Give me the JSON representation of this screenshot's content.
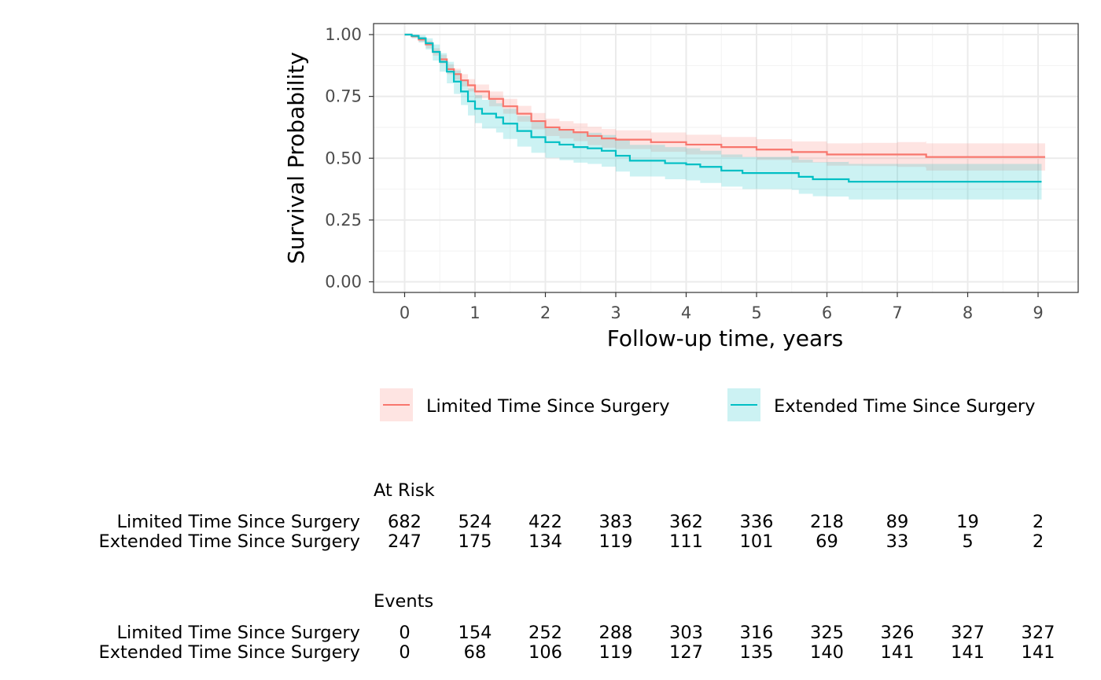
{
  "chart_data": {
    "type": "line",
    "subtype": "kaplan-meier",
    "xlabel": "Follow-up time, years",
    "ylabel": "Survival Probability",
    "xlim": [
      -0.45,
      9.6
    ],
    "ylim": [
      -0.045,
      1.045
    ],
    "x_ticks": [
      0,
      1,
      2,
      3,
      4,
      5,
      6,
      7,
      8,
      9
    ],
    "y_ticks": [
      0,
      0.25,
      0.5,
      0.75,
      1
    ],
    "y_tick_labels": [
      "0.00",
      "0.25",
      "0.50",
      "0.75",
      "1.00"
    ],
    "grid": true,
    "confidence_band": true,
    "legend_position": "bottom",
    "series": [
      {
        "name": "Limited Time Since Surgery",
        "color": "#F8766D",
        "band_color": "#F8766D",
        "points": [
          [
            0,
            1
          ],
          [
            0.1,
            0.993
          ],
          [
            0.2,
            0.98
          ],
          [
            0.3,
            0.96
          ],
          [
            0.4,
            0.93
          ],
          [
            0.5,
            0.9
          ],
          [
            0.6,
            0.86
          ],
          [
            0.7,
            0.84
          ],
          [
            0.8,
            0.815
          ],
          [
            0.9,
            0.795
          ],
          [
            1,
            0.77
          ],
          [
            1.2,
            0.74
          ],
          [
            1.4,
            0.71
          ],
          [
            1.6,
            0.68
          ],
          [
            1.8,
            0.65
          ],
          [
            2,
            0.625
          ],
          [
            2.2,
            0.615
          ],
          [
            2.4,
            0.605
          ],
          [
            2.6,
            0.59
          ],
          [
            2.8,
            0.58
          ],
          [
            3,
            0.575
          ],
          [
            3.5,
            0.565
          ],
          [
            4,
            0.555
          ],
          [
            4.5,
            0.545
          ],
          [
            5,
            0.535
          ],
          [
            5.5,
            0.525
          ],
          [
            6,
            0.515
          ],
          [
            6.5,
            0.515
          ],
          [
            7,
            0.515
          ],
          [
            7.4,
            0.515
          ],
          [
            7.41,
            0.505
          ],
          [
            8,
            0.505
          ],
          [
            9.1,
            0.505
          ]
        ],
        "lower": [
          [
            0,
            1
          ],
          [
            0.1,
            0.987
          ],
          [
            0.2,
            0.97
          ],
          [
            0.3,
            0.945
          ],
          [
            0.4,
            0.915
          ],
          [
            0.5,
            0.882
          ],
          [
            0.6,
            0.84
          ],
          [
            0.7,
            0.818
          ],
          [
            0.8,
            0.79
          ],
          [
            0.9,
            0.77
          ],
          [
            1,
            0.742
          ],
          [
            1.2,
            0.71
          ],
          [
            1.4,
            0.68
          ],
          [
            1.6,
            0.648
          ],
          [
            1.8,
            0.617
          ],
          [
            2,
            0.59
          ],
          [
            2.2,
            0.58
          ],
          [
            2.4,
            0.569
          ],
          [
            2.6,
            0.553
          ],
          [
            2.8,
            0.542
          ],
          [
            3,
            0.537
          ],
          [
            3.5,
            0.526
          ],
          [
            4,
            0.515
          ],
          [
            4.5,
            0.504
          ],
          [
            5,
            0.493
          ],
          [
            5.5,
            0.482
          ],
          [
            6,
            0.47
          ],
          [
            6.5,
            0.468
          ],
          [
            7,
            0.465
          ],
          [
            7.4,
            0.462
          ],
          [
            7.41,
            0.45
          ],
          [
            8,
            0.45
          ],
          [
            9.1,
            0.45
          ]
        ],
        "upper": [
          [
            0,
            1
          ],
          [
            0.1,
            0.999
          ],
          [
            0.2,
            0.99
          ],
          [
            0.3,
            0.975
          ],
          [
            0.4,
            0.945
          ],
          [
            0.5,
            0.918
          ],
          [
            0.6,
            0.88
          ],
          [
            0.7,
            0.862
          ],
          [
            0.8,
            0.84
          ],
          [
            0.9,
            0.82
          ],
          [
            1,
            0.798
          ],
          [
            1.2,
            0.77
          ],
          [
            1.4,
            0.74
          ],
          [
            1.6,
            0.712
          ],
          [
            1.8,
            0.683
          ],
          [
            2,
            0.66
          ],
          [
            2.2,
            0.65
          ],
          [
            2.4,
            0.641
          ],
          [
            2.6,
            0.627
          ],
          [
            2.8,
            0.618
          ],
          [
            3,
            0.613
          ],
          [
            3.5,
            0.604
          ],
          [
            4,
            0.595
          ],
          [
            4.5,
            0.586
          ],
          [
            5,
            0.577
          ],
          [
            5.5,
            0.568
          ],
          [
            6,
            0.56
          ],
          [
            6.5,
            0.562
          ],
          [
            7,
            0.565
          ],
          [
            7.4,
            0.568
          ],
          [
            7.41,
            0.56
          ],
          [
            8,
            0.56
          ],
          [
            9.1,
            0.56
          ]
        ]
      },
      {
        "name": "Extended Time Since Surgery",
        "color": "#00BFC4",
        "band_color": "#00BFC4",
        "points": [
          [
            0,
            1
          ],
          [
            0.1,
            0.995
          ],
          [
            0.2,
            0.985
          ],
          [
            0.3,
            0.965
          ],
          [
            0.4,
            0.93
          ],
          [
            0.5,
            0.89
          ],
          [
            0.6,
            0.85
          ],
          [
            0.7,
            0.81
          ],
          [
            0.8,
            0.77
          ],
          [
            0.9,
            0.73
          ],
          [
            1,
            0.7
          ],
          [
            1.1,
            0.68
          ],
          [
            1.3,
            0.665
          ],
          [
            1.4,
            0.64
          ],
          [
            1.6,
            0.61
          ],
          [
            1.8,
            0.585
          ],
          [
            2,
            0.565
          ],
          [
            2.2,
            0.555
          ],
          [
            2.4,
            0.545
          ],
          [
            2.6,
            0.54
          ],
          [
            2.8,
            0.53
          ],
          [
            3,
            0.51
          ],
          [
            3.2,
            0.49
          ],
          [
            3.5,
            0.49
          ],
          [
            3.7,
            0.48
          ],
          [
            4,
            0.475
          ],
          [
            4.2,
            0.465
          ],
          [
            4.5,
            0.45
          ],
          [
            4.8,
            0.44
          ],
          [
            5,
            0.44
          ],
          [
            5.5,
            0.44
          ],
          [
            5.6,
            0.425
          ],
          [
            5.8,
            0.415
          ],
          [
            6,
            0.415
          ],
          [
            6.3,
            0.415
          ],
          [
            6.31,
            0.405
          ],
          [
            7,
            0.405
          ],
          [
            8,
            0.405
          ],
          [
            9.05,
            0.405
          ]
        ],
        "lower": [
          [
            0,
            1
          ],
          [
            0.1,
            0.985
          ],
          [
            0.2,
            0.968
          ],
          [
            0.3,
            0.94
          ],
          [
            0.4,
            0.895
          ],
          [
            0.5,
            0.85
          ],
          [
            0.6,
            0.803
          ],
          [
            0.7,
            0.76
          ],
          [
            0.8,
            0.715
          ],
          [
            0.9,
            0.673
          ],
          [
            1,
            0.642
          ],
          [
            1.1,
            0.62
          ],
          [
            1.3,
            0.604
          ],
          [
            1.4,
            0.578
          ],
          [
            1.6,
            0.547
          ],
          [
            1.8,
            0.522
          ],
          [
            2,
            0.502
          ],
          [
            2.2,
            0.492
          ],
          [
            2.4,
            0.482
          ],
          [
            2.6,
            0.477
          ],
          [
            2.8,
            0.466
          ],
          [
            3,
            0.446
          ],
          [
            3.2,
            0.426
          ],
          [
            3.5,
            0.426
          ],
          [
            3.7,
            0.415
          ],
          [
            4,
            0.41
          ],
          [
            4.2,
            0.4
          ],
          [
            4.5,
            0.385
          ],
          [
            4.8,
            0.375
          ],
          [
            5,
            0.375
          ],
          [
            5.5,
            0.372
          ],
          [
            5.6,
            0.356
          ],
          [
            5.8,
            0.346
          ],
          [
            6,
            0.345
          ],
          [
            6.3,
            0.344
          ],
          [
            6.31,
            0.333
          ],
          [
            7,
            0.333
          ],
          [
            8,
            0.333
          ],
          [
            9.05,
            0.333
          ]
        ],
        "upper": [
          [
            0,
            1
          ],
          [
            0.1,
            1
          ],
          [
            0.2,
            0.998
          ],
          [
            0.3,
            0.985
          ],
          [
            0.4,
            0.96
          ],
          [
            0.5,
            0.925
          ],
          [
            0.6,
            0.89
          ],
          [
            0.7,
            0.855
          ],
          [
            0.8,
            0.818
          ],
          [
            0.9,
            0.782
          ],
          [
            1,
            0.755
          ],
          [
            1.1,
            0.736
          ],
          [
            1.3,
            0.722
          ],
          [
            1.4,
            0.7
          ],
          [
            1.6,
            0.671
          ],
          [
            1.8,
            0.648
          ],
          [
            2,
            0.628
          ],
          [
            2.2,
            0.618
          ],
          [
            2.4,
            0.608
          ],
          [
            2.6,
            0.603
          ],
          [
            2.8,
            0.594
          ],
          [
            3,
            0.574
          ],
          [
            3.2,
            0.554
          ],
          [
            3.5,
            0.554
          ],
          [
            3.7,
            0.545
          ],
          [
            4,
            0.54
          ],
          [
            4.2,
            0.53
          ],
          [
            4.5,
            0.515
          ],
          [
            4.8,
            0.505
          ],
          [
            5,
            0.505
          ],
          [
            5.5,
            0.508
          ],
          [
            5.6,
            0.494
          ],
          [
            5.8,
            0.484
          ],
          [
            6,
            0.485
          ],
          [
            6.3,
            0.486
          ],
          [
            6.31,
            0.477
          ],
          [
            7,
            0.477
          ],
          [
            8,
            0.477
          ],
          [
            9.05,
            0.477
          ]
        ]
      }
    ],
    "risk_tables": [
      {
        "title": "At Risk",
        "rows": [
          {
            "label": "Limited Time Since Surgery",
            "values": [
              "682",
              "524",
              "422",
              "383",
              "362",
              "336",
              "218",
              "89",
              "19",
              "2"
            ]
          },
          {
            "label": "Extended Time Since Surgery",
            "values": [
              "247",
              "175",
              "134",
              "119",
              "111",
              "101",
              "69",
              "33",
              "5",
              "2"
            ]
          }
        ]
      },
      {
        "title": "Events",
        "rows": [
          {
            "label": "Limited Time Since Surgery",
            "values": [
              "0",
              "154",
              "252",
              "288",
              "303",
              "316",
              "325",
              "326",
              "327",
              "327"
            ]
          },
          {
            "label": "Extended Time Since Surgery",
            "values": [
              "0",
              "68",
              "106",
              "119",
              "127",
              "135",
              "140",
              "141",
              "141",
              "141"
            ]
          }
        ]
      }
    ]
  }
}
